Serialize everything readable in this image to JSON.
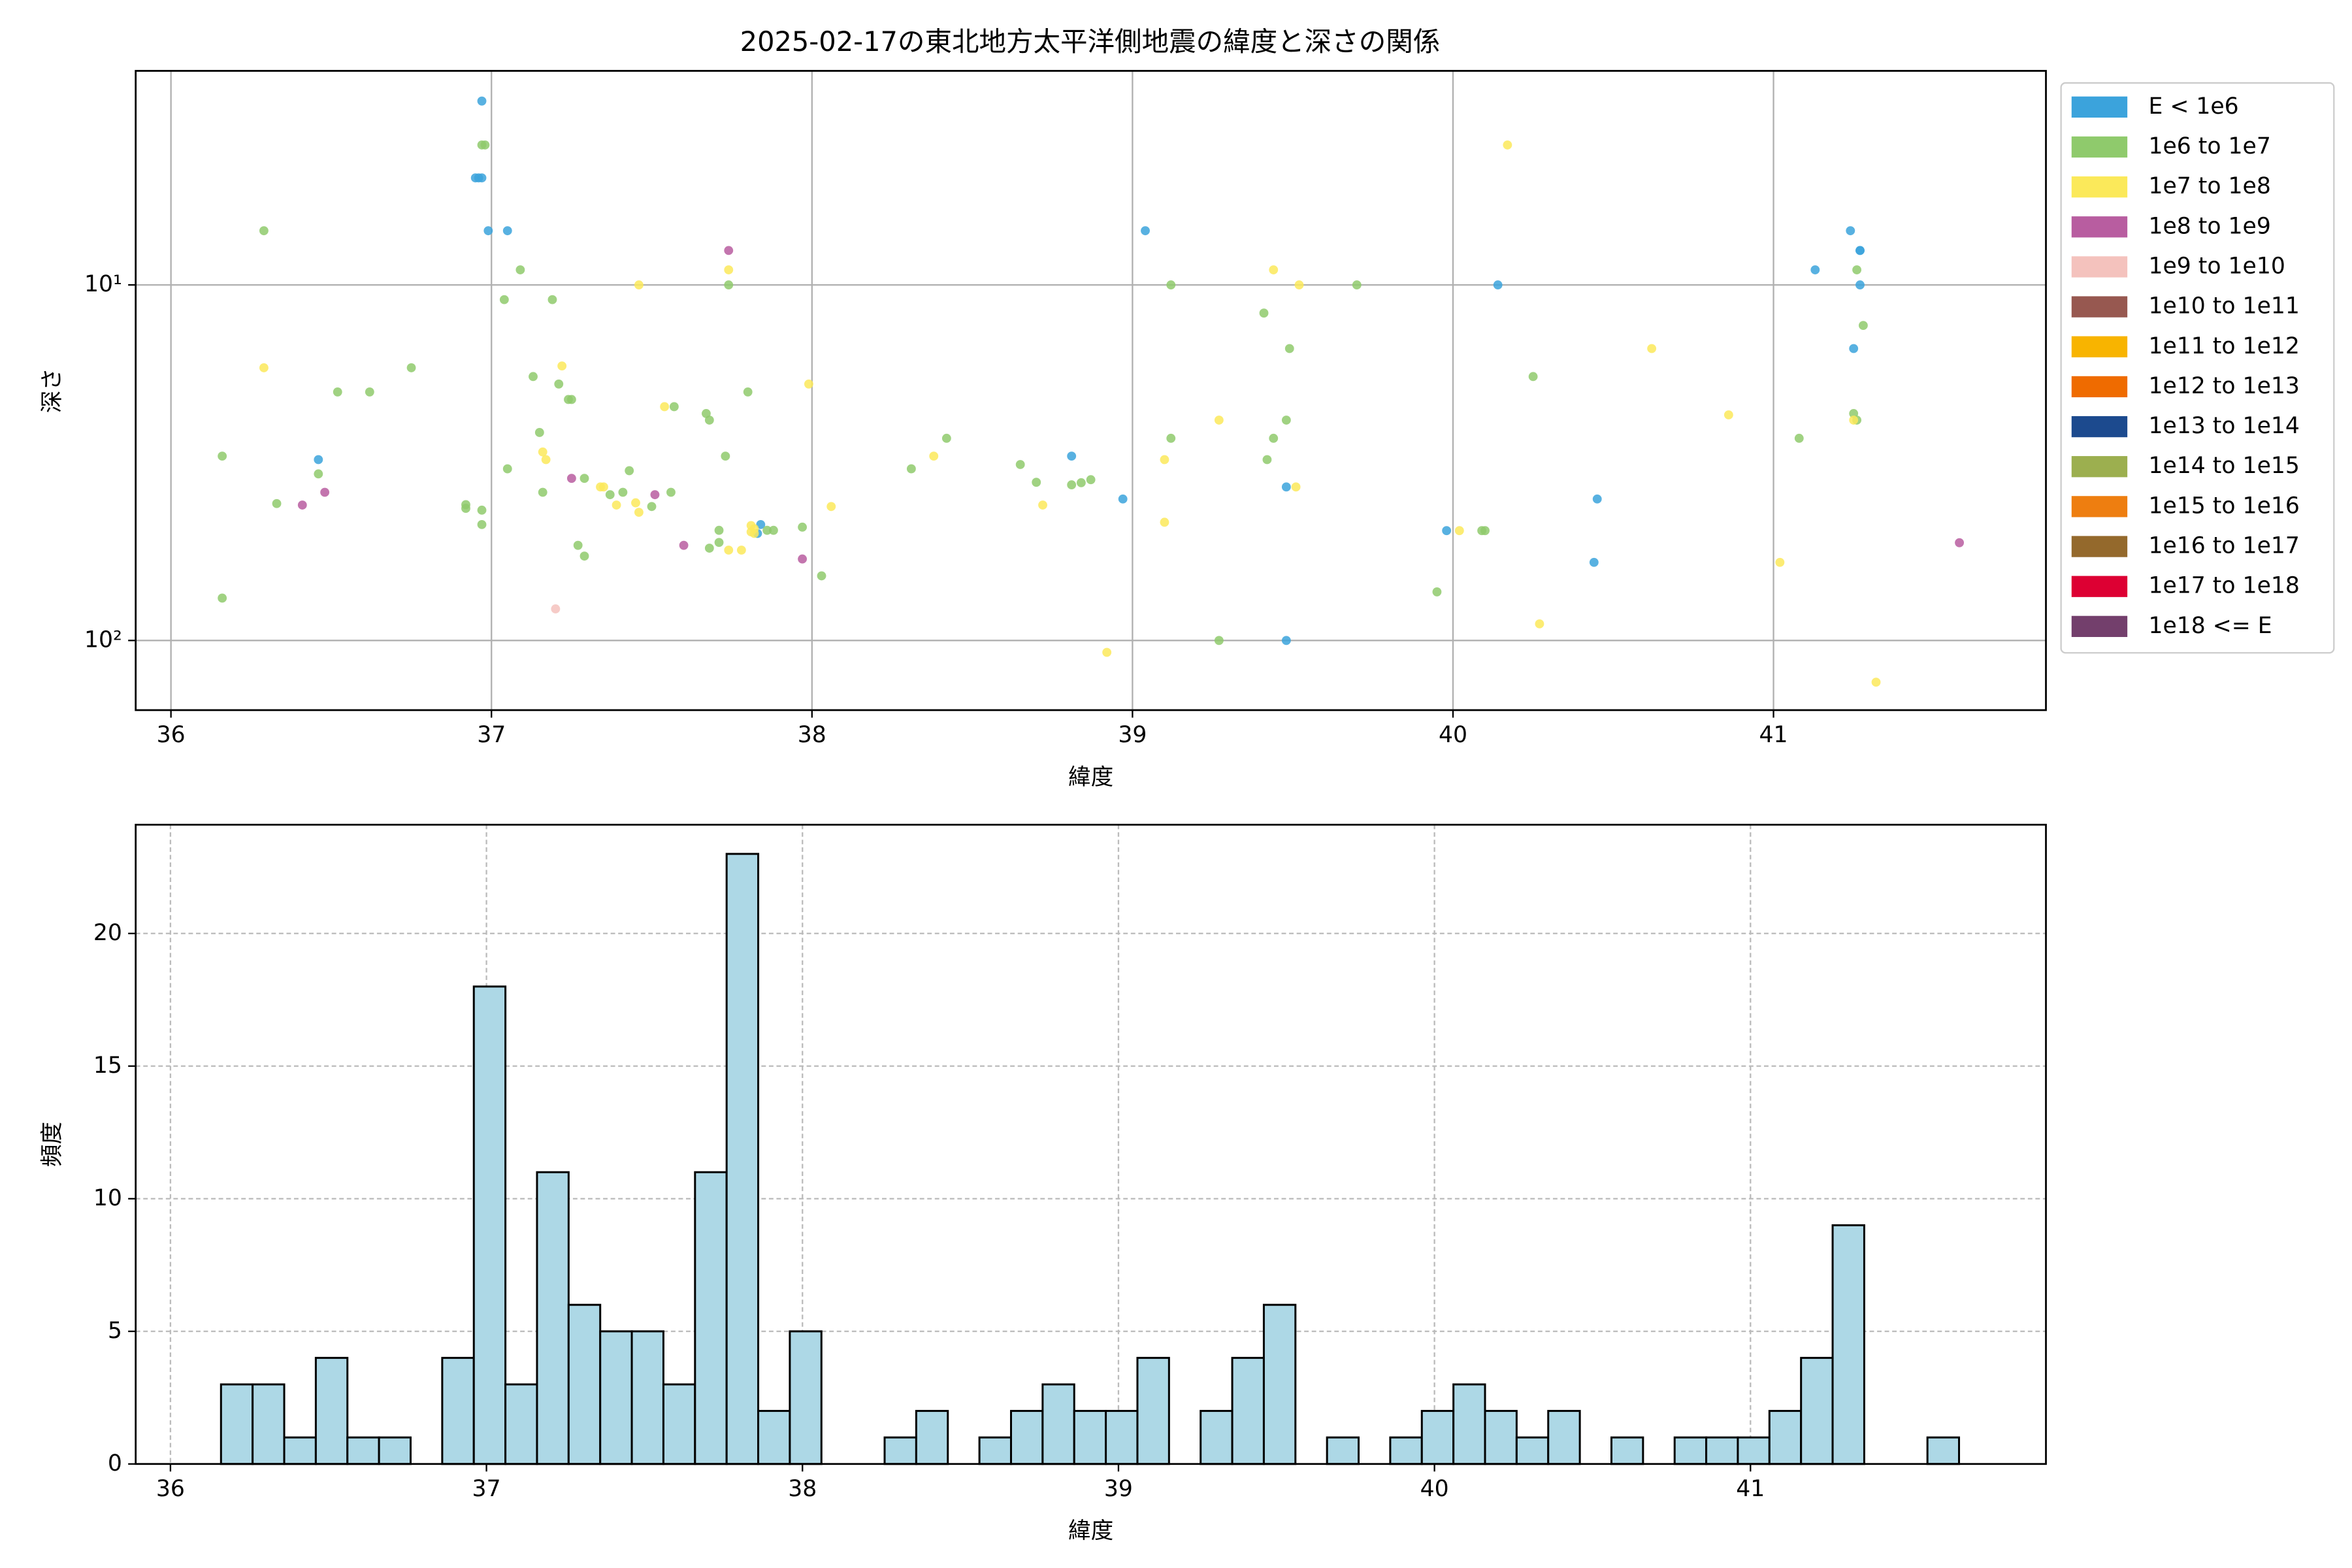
{
  "chart_data": [
    {
      "type": "scatter",
      "title": "2025-02-17の東北地方太平洋側地震の緯度と深さの関係",
      "xlabel": "緯度",
      "ylabel": "深さ",
      "xlim": [
        35.89,
        41.85
      ],
      "xticks": [
        36,
        37,
        38,
        39,
        40,
        41
      ],
      "ylim": [
        157,
        2.5
      ],
      "yscale": "log",
      "yticks": [
        {
          "value": 10,
          "label": "10¹"
        },
        {
          "value": 100,
          "label": "10²"
        }
      ],
      "grid": true,
      "legend": "outside-right",
      "series": [
        {
          "name": "E < 1e6",
          "color": "#3ba3dc",
          "x": [
            36.97,
            36.95,
            36.96,
            36.97,
            36.99,
            37.05,
            36.46,
            37.84,
            37.83,
            38.81,
            38.97,
            39.04,
            39.48,
            39.48,
            39.98,
            40.14,
            40.44,
            40.45,
            41.24,
            41.27,
            41.27,
            41.13,
            41.27,
            41.25
          ],
          "values": [
            3.04,
            5.0,
            5.0,
            5.0,
            7.04,
            7.04,
            31.0,
            47.2,
            50.0,
            30.3,
            40.0,
            7.04,
            37,
            100,
            49.1,
            10,
            60.3,
            40,
            7.04,
            8.0,
            8.0,
            9.07,
            10,
            15.1
          ]
        },
        {
          "name": "1e6 to 1e7",
          "color": "#8fca6c",
          "x": [
            36.29,
            36.16,
            36.33,
            36.46,
            36.16,
            36.52,
            36.62,
            36.75,
            36.92,
            36.92,
            36.97,
            36.97,
            36.97,
            36.98,
            37.09,
            37.04,
            37.05,
            37.19,
            37.13,
            37.15,
            37.16,
            37.21,
            37.24,
            37.25,
            37.29,
            37.27,
            37.29,
            37.37,
            37.41,
            37.43,
            37.5,
            37.56,
            37.57,
            37.67,
            37.68,
            37.73,
            37.74,
            37.68,
            37.71,
            37.71,
            37.8,
            37.86,
            37.88,
            37.97,
            38.03,
            38.31,
            38.42,
            38.65,
            38.7,
            38.81,
            38.84,
            38.87,
            39.12,
            39.12,
            39.41,
            39.49,
            39.48,
            39.44,
            39.42,
            39.27,
            39.7,
            39.95,
            40.09,
            40.1,
            40.25,
            41.08,
            41.26,
            41.28,
            41.25,
            41.26
          ],
          "values": [
            7.04,
            30.3,
            41.2,
            34,
            76,
            20,
            20,
            17.1,
            41.5,
            42.5,
            43,
            47.2,
            4.04,
            4.04,
            9.07,
            11.0,
            32.9,
            11,
            18.1,
            26,
            38.3,
            19,
            21,
            21,
            35,
            54,
            57.9,
            38.9,
            38.3,
            33.3,
            42,
            38.3,
            22,
            23,
            24,
            30.3,
            10,
            55,
            53,
            49,
            20,
            49,
            49,
            48,
            65.8,
            32.9,
            27,
            32,
            35.9,
            36.5,
            36,
            35.3,
            10,
            27,
            12.0,
            15.1,
            24,
            27,
            31,
            100,
            10,
            73,
            49.1,
            49.1,
            18.1,
            27,
            9.07,
            13,
            23,
            24
          ]
        },
        {
          "name": "1e7 to 1e8",
          "color": "#fbe95a",
          "x": [
            36.29,
            37.22,
            37.16,
            37.17,
            37.34,
            37.35,
            37.39,
            37.45,
            37.46,
            37.46,
            37.54,
            37.74,
            37.74,
            37.78,
            37.81,
            37.81,
            37.82,
            37.82,
            37.99,
            38.06,
            38.38,
            38.72,
            38.92,
            39.1,
            39.1,
            39.27,
            39.44,
            39.52,
            39.51,
            40.02,
            40.17,
            40.27,
            40.62,
            40.86,
            41.02,
            41.25,
            41.32
          ],
          "values": [
            17.1,
            16.9,
            29.5,
            31,
            37,
            37,
            41.6,
            41,
            43.6,
            10,
            22,
            9.07,
            55.7,
            55.7,
            47.5,
            49.5,
            48.5,
            50,
            19,
            42,
            30.3,
            41.6,
            108,
            46.5,
            31,
            24,
            9.07,
            10,
            37,
            49.1,
            4.04,
            89.8,
            15.1,
            23.2,
            60.3,
            24,
            131
          ]
        },
        {
          "name": "1e8 to 1e9",
          "color": "#b85da0",
          "x": [
            37.74,
            36.41,
            36.48,
            37.25,
            37.51,
            37.6,
            37.97,
            41.58
          ],
          "values": [
            8.0,
            41.6,
            38.3,
            35,
            38.9,
            54,
            59,
            53.1
          ]
        },
        {
          "name": "1e9 to 1e10",
          "color": "#f4c2bd",
          "x": [
            37.2
          ],
          "values": [
            81.5
          ]
        },
        {
          "name": "1e10 to 1e11",
          "color": "#975850",
          "x": [],
          "values": []
        },
        {
          "name": "1e11 to 1e12",
          "color": "#f8b400",
          "x": [],
          "values": []
        },
        {
          "name": "1e12 to 1e13",
          "color": "#ef6b00",
          "x": [],
          "values": []
        },
        {
          "name": "1e13 to 1e14",
          "color": "#1c4a8e",
          "x": [],
          "values": []
        },
        {
          "name": "1e14 to 1e15",
          "color": "#9caf4f",
          "x": [],
          "values": []
        },
        {
          "name": "1e15 to 1e16",
          "color": "#ee7e10",
          "x": [],
          "values": []
        },
        {
          "name": "1e16 to 1e17",
          "color": "#94692c",
          "x": [],
          "values": []
        },
        {
          "name": "1e17 to 1e18",
          "color": "#dd0033",
          "x": [],
          "values": []
        },
        {
          "name": "1e18 <= E",
          "color": "#733f6c",
          "x": [],
          "values": []
        }
      ]
    },
    {
      "type": "histogram",
      "xlabel": "緯度",
      "ylabel": "頻度",
      "color": "#add8e6",
      "edgecolor": "#000000",
      "xlim": [
        35.89,
        41.935
      ],
      "xticks": [
        36,
        37,
        38,
        39,
        40,
        41
      ],
      "ylim": [
        0,
        24.1
      ],
      "yticks": [
        0,
        5,
        10,
        15,
        20
      ],
      "grid": true,
      "bins": [
        36.16,
        36.26,
        36.36,
        36.46,
        36.56,
        36.66,
        36.76,
        36.86,
        36.96,
        37.06,
        37.16,
        37.26,
        37.36,
        37.46,
        37.56,
        37.66,
        37.76,
        37.86,
        37.96,
        38.06,
        38.16,
        38.26,
        38.36,
        38.46,
        38.56,
        38.66,
        38.76,
        38.86,
        38.96,
        39.06,
        39.16,
        39.26,
        39.36,
        39.46,
        39.56,
        39.66,
        39.76,
        39.86,
        39.96,
        40.06,
        40.16,
        40.26,
        40.36,
        40.46,
        40.56,
        40.66,
        40.76,
        40.86,
        40.96,
        41.06,
        41.16,
        41.26,
        41.36,
        41.46,
        41.56,
        41.66
      ],
      "values": [
        3,
        3,
        1,
        4,
        1,
        1,
        0,
        4,
        18,
        3,
        11,
        6,
        5,
        5,
        3,
        11,
        23,
        2,
        5,
        0,
        0,
        1,
        2,
        0,
        1,
        2,
        3,
        2,
        2,
        4,
        0,
        2,
        4,
        6,
        0,
        1,
        0,
        1,
        2,
        3,
        2,
        1,
        2,
        0,
        1,
        0,
        1,
        1,
        1,
        2,
        4,
        9,
        0,
        0,
        1
      ]
    }
  ]
}
